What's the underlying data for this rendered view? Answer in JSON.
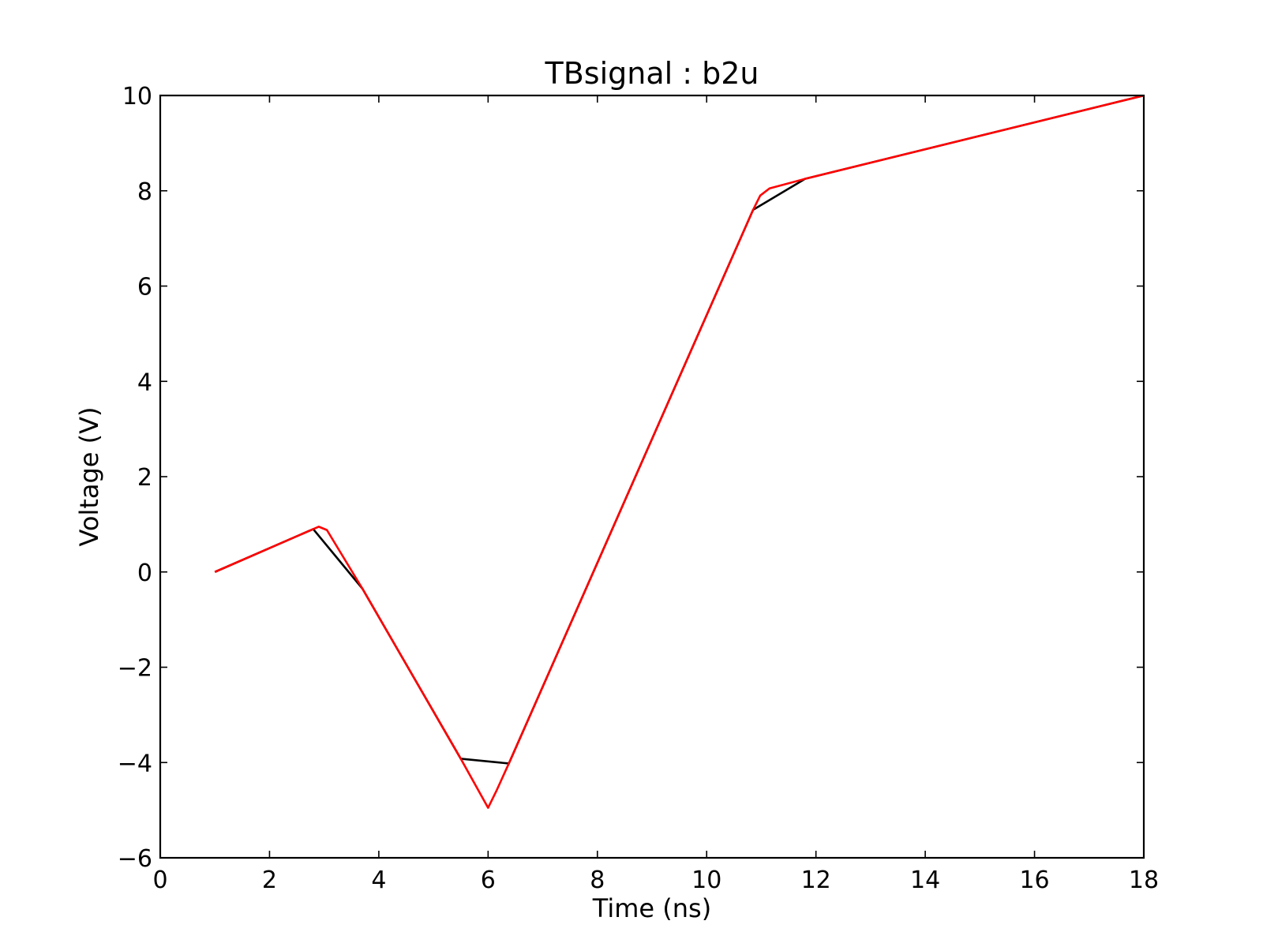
{
  "chart_data": {
    "type": "line",
    "title": "TBsignal : b2u",
    "xlabel": "Time (ns)",
    "ylabel": "Voltage (V)",
    "xlim": [
      0,
      18
    ],
    "ylim": [
      -6,
      10
    ],
    "xticks": [
      0,
      2,
      4,
      6,
      8,
      10,
      12,
      14,
      16,
      18
    ],
    "yticks": [
      -6,
      -4,
      -2,
      0,
      2,
      4,
      6,
      8,
      10
    ],
    "grid": false,
    "legend": "none",
    "series": [
      {
        "color": "#000000",
        "points": [
          [
            1.0,
            0.0
          ],
          [
            2.8,
            0.9
          ],
          [
            3.7,
            -0.35
          ],
          [
            5.5,
            -3.92
          ],
          [
            6.38,
            -4.02
          ],
          [
            10.85,
            7.6
          ],
          [
            11.8,
            8.25
          ],
          [
            18.0,
            10.0
          ]
        ]
      },
      {
        "color": "#ff0000",
        "points": [
          [
            1.0,
            0.0
          ],
          [
            2.9,
            0.95
          ],
          [
            3.05,
            0.88
          ],
          [
            3.7,
            -0.35
          ],
          [
            5.5,
            -3.92
          ],
          [
            6.0,
            -4.95
          ],
          [
            6.15,
            -4.6
          ],
          [
            6.38,
            -4.02
          ],
          [
            10.85,
            7.6
          ],
          [
            10.98,
            7.9
          ],
          [
            11.15,
            8.05
          ],
          [
            11.8,
            8.25
          ],
          [
            18.0,
            10.0
          ]
        ]
      }
    ]
  }
}
